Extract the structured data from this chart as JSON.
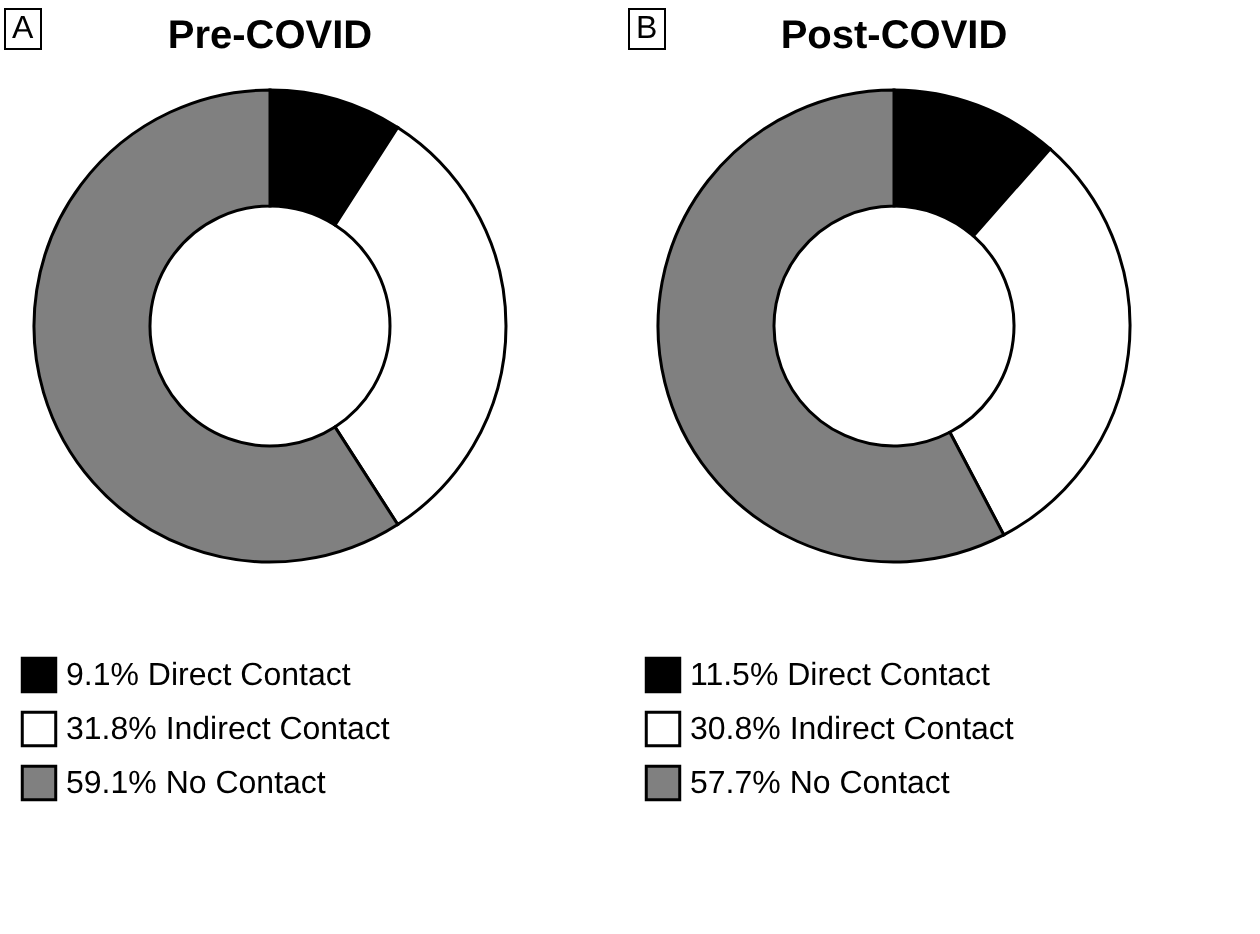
{
  "chart_data": [
    {
      "type": "donut",
      "title": "Pre-COVID",
      "annotations": [
        "A"
      ],
      "categories": [
        "Direct Contact",
        "Indirect Contact",
        "No Contact"
      ],
      "values": [
        9.1,
        31.8,
        59.1
      ],
      "value_labels": [
        "9.1%",
        "31.8%",
        "59.1%"
      ],
      "colors": [
        "#000000",
        "#ffffff",
        "#808080"
      ],
      "legend": "bottom left"
    },
    {
      "type": "donut",
      "title": "Post-COVID",
      "annotations": [
        "B"
      ],
      "categories": [
        "Direct Contact",
        "Indirect Contact",
        "No Contact"
      ],
      "values": [
        11.5,
        30.8,
        57.7
      ],
      "value_labels": [
        "11.5%",
        "30.8%",
        "57.7%"
      ],
      "colors": [
        "#000000",
        "#ffffff",
        "#808080"
      ],
      "legend": "bottom left"
    }
  ]
}
